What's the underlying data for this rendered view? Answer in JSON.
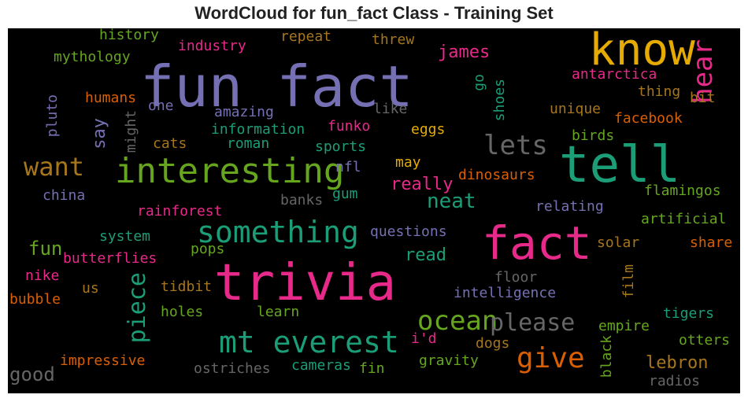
{
  "title": "WordCloud for fun_fact Class - Training Set",
  "colors": {
    "teal": "#1b9e77",
    "orange": "#d95f02",
    "purple": "#7570b3",
    "pink": "#e7298a",
    "green": "#66a61e",
    "gold": "#e6ab02",
    "brown": "#a6761d",
    "gray": "#666666"
  },
  "words": [
    {
      "text": "fun fact",
      "color": "#7570b3"
    },
    {
      "text": "know",
      "color": "#e6ab02"
    },
    {
      "text": "hear",
      "color": "#e7298a"
    },
    {
      "text": "tell",
      "color": "#1b9e77"
    },
    {
      "text": "interesting",
      "color": "#66a61e"
    },
    {
      "text": "trivia",
      "color": "#e7298a"
    },
    {
      "text": "fact",
      "color": "#e7298a"
    },
    {
      "text": "something",
      "color": "#1b9e77"
    },
    {
      "text": "mt everest",
      "color": "#1b9e77"
    },
    {
      "text": "lets",
      "color": "#666666"
    },
    {
      "text": "want",
      "color": "#a6761d"
    },
    {
      "text": "ocean",
      "color": "#66a61e"
    },
    {
      "text": "please",
      "color": "#666666"
    },
    {
      "text": "give",
      "color": "#d95f02"
    },
    {
      "text": "piece",
      "color": "#1b9e77"
    },
    {
      "text": "neat",
      "color": "#1b9e77"
    },
    {
      "text": "lebron",
      "color": "#a6761d"
    },
    {
      "text": "say",
      "color": "#7570b3"
    },
    {
      "text": "james",
      "color": "#e7298a"
    },
    {
      "text": "history",
      "color": "#66a61e"
    },
    {
      "text": "industry",
      "color": "#e7298a"
    },
    {
      "text": "repeat",
      "color": "#a6761d"
    },
    {
      "text": "threw",
      "color": "#a6761d"
    },
    {
      "text": "mythology",
      "color": "#66a61e"
    },
    {
      "text": "antarctica",
      "color": "#e7298a"
    },
    {
      "text": "go",
      "color": "#1b9e77"
    },
    {
      "text": "shoes",
      "color": "#1b9e77"
    },
    {
      "text": "thing",
      "color": "#a6761d"
    },
    {
      "text": "bit",
      "color": "#a6761d"
    },
    {
      "text": "pluto",
      "color": "#7570b3"
    },
    {
      "text": "humans",
      "color": "#d95f02"
    },
    {
      "text": "one",
      "color": "#7570b3"
    },
    {
      "text": "amazing",
      "color": "#7570b3"
    },
    {
      "text": "like",
      "color": "#666666"
    },
    {
      "text": "unique",
      "color": "#a6761d"
    },
    {
      "text": "facebook",
      "color": "#d95f02"
    },
    {
      "text": "might",
      "color": "#666666"
    },
    {
      "text": "information",
      "color": "#1b9e77"
    },
    {
      "text": "funko",
      "color": "#e7298a"
    },
    {
      "text": "eggs",
      "color": "#e6ab02"
    },
    {
      "text": "cats",
      "color": "#a6761d"
    },
    {
      "text": "roman",
      "color": "#1b9e77"
    },
    {
      "text": "sports",
      "color": "#1b9e77"
    },
    {
      "text": "birds",
      "color": "#66a61e"
    },
    {
      "text": "nfl",
      "color": "#7570b3"
    },
    {
      "text": "may",
      "color": "#e6ab02"
    },
    {
      "text": "dinosaurs",
      "color": "#d95f02"
    },
    {
      "text": "really",
      "color": "#e7298a"
    },
    {
      "text": "flamingos",
      "color": "#66a61e"
    },
    {
      "text": "china",
      "color": "#7570b3"
    },
    {
      "text": "gum",
      "color": "#1b9e77"
    },
    {
      "text": "banks",
      "color": "#666666"
    },
    {
      "text": "relating",
      "color": "#7570b3"
    },
    {
      "text": "rainforest",
      "color": "#e7298a"
    },
    {
      "text": "artificial",
      "color": "#66a61e"
    },
    {
      "text": "system",
      "color": "#1b9e77"
    },
    {
      "text": "questions",
      "color": "#7570b3"
    },
    {
      "text": "fun",
      "color": "#66a61e"
    },
    {
      "text": "pops",
      "color": "#66a61e"
    },
    {
      "text": "solar",
      "color": "#a6761d"
    },
    {
      "text": "share",
      "color": "#d95f02"
    },
    {
      "text": "butterflies",
      "color": "#e7298a"
    },
    {
      "text": "read",
      "color": "#1b9e77"
    },
    {
      "text": "nike",
      "color": "#e7298a"
    },
    {
      "text": "floor",
      "color": "#666666"
    },
    {
      "text": "film",
      "color": "#a6761d"
    },
    {
      "text": "tidbit",
      "color": "#a6761d"
    },
    {
      "text": "us",
      "color": "#a6761d"
    },
    {
      "text": "intelligence",
      "color": "#7570b3"
    },
    {
      "text": "bubble",
      "color": "#d95f02"
    },
    {
      "text": "holes",
      "color": "#66a61e"
    },
    {
      "text": "learn",
      "color": "#66a61e"
    },
    {
      "text": "tigers",
      "color": "#1b9e77"
    },
    {
      "text": "empire",
      "color": "#66a61e"
    },
    {
      "text": "i'd",
      "color": "#e7298a"
    },
    {
      "text": "otters",
      "color": "#66a61e"
    },
    {
      "text": "black",
      "color": "#66a61e"
    },
    {
      "text": "dogs",
      "color": "#a6761d"
    },
    {
      "text": "impressive",
      "color": "#d95f02"
    },
    {
      "text": "gravity",
      "color": "#66a61e"
    },
    {
      "text": "ostriches",
      "color": "#666666"
    },
    {
      "text": "cameras",
      "color": "#1b9e77"
    },
    {
      "text": "fin",
      "color": "#66a61e"
    },
    {
      "text": "good",
      "color": "#666666"
    },
    {
      "text": "radios",
      "color": "#666666"
    }
  ]
}
